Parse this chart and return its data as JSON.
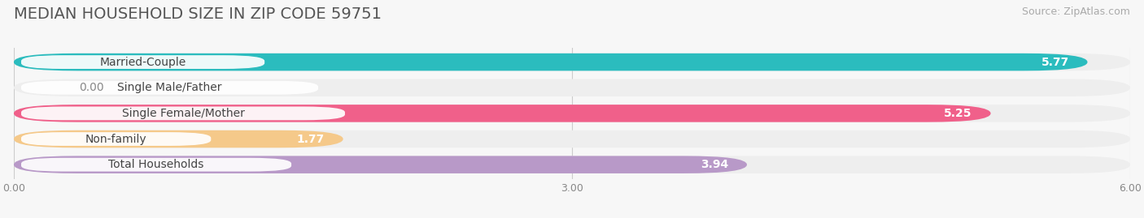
{
  "title": "MEDIAN HOUSEHOLD SIZE IN ZIP CODE 59751",
  "source": "Source: ZipAtlas.com",
  "categories": [
    "Married-Couple",
    "Single Male/Father",
    "Single Female/Mother",
    "Non-family",
    "Total Households"
  ],
  "values": [
    5.77,
    0.0,
    5.25,
    1.77,
    3.94
  ],
  "bar_colors": [
    "#2bbcbe",
    "#98b8e8",
    "#f0608a",
    "#f5c98a",
    "#b899c8"
  ],
  "bar_bg_colors": [
    "#eeeeee",
    "#eeeeee",
    "#eeeeee",
    "#eeeeee",
    "#eeeeee"
  ],
  "xlim": [
    0,
    6.0
  ],
  "xticks": [
    0.0,
    3.0,
    6.0
  ],
  "xtick_labels": [
    "0.00",
    "3.00",
    "6.00"
  ],
  "background_color": "#f7f7f7",
  "title_fontsize": 14,
  "source_fontsize": 9,
  "label_fontsize": 10,
  "value_fontsize": 10
}
